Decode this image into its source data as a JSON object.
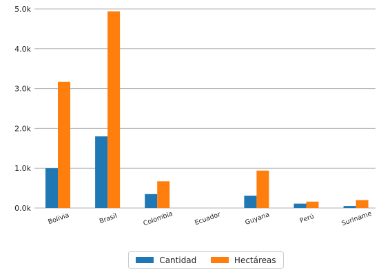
{
  "chart_data": {
    "type": "bar",
    "title": "",
    "xlabel": "",
    "ylabel": "",
    "categories": [
      "Bolivia",
      "Brasil",
      "Colombia",
      "Ecuador",
      "Guyana",
      "Perú",
      "Suriname"
    ],
    "series": [
      {
        "name": "Cantidad",
        "color": "#1f77b4",
        "values": [
          1000,
          1800,
          350,
          0,
          310,
          110,
          50
        ]
      },
      {
        "name": "Hectáreas",
        "color": "#ff7f0e",
        "values": [
          3170,
          4940,
          670,
          0,
          940,
          160,
          200
        ]
      }
    ],
    "ylim": [
      0,
      5000
    ],
    "yticks": [
      {
        "value": 0,
        "label": "0.0k"
      },
      {
        "value": 1000,
        "label": "1.0k"
      },
      {
        "value": 2000,
        "label": "2.0k"
      },
      {
        "value": 3000,
        "label": "3.0k"
      },
      {
        "value": 4000,
        "label": "4.0k"
      },
      {
        "value": 5000,
        "label": "5.0k"
      }
    ],
    "grid": "horizontal",
    "legend_position": "bottom-center"
  }
}
